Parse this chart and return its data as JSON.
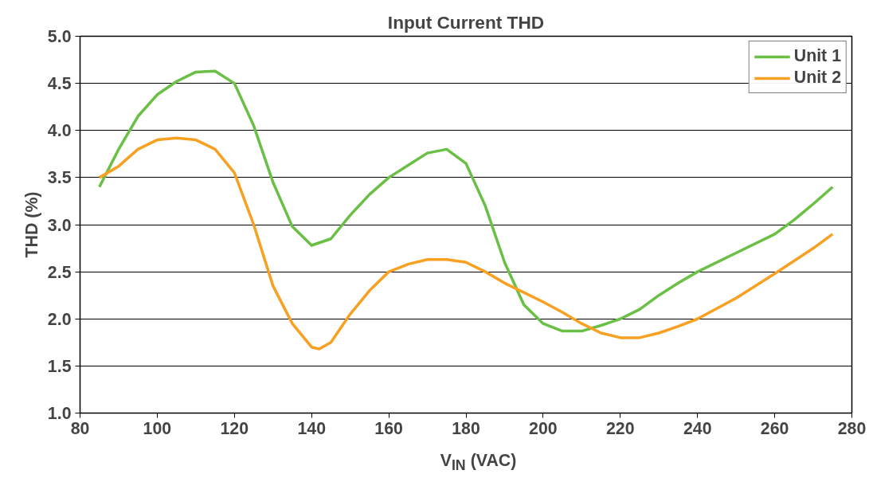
{
  "chart_data": {
    "type": "line",
    "title": "Input Current THD",
    "xlabel": "V$_{IN}$ (VAC)",
    "ylabel": "THD (%)",
    "xlim": [
      80,
      280
    ],
    "xticks": [
      80,
      100,
      120,
      140,
      160,
      180,
      200,
      220,
      240,
      260,
      280
    ],
    "ylim": [
      1.0,
      5.0
    ],
    "yticks": [
      {
        "value": 1,
        "label": "1.0"
      },
      {
        "value": 1.5,
        "label": "1.5"
      },
      {
        "value": 2,
        "label": "2.0"
      },
      {
        "value": 2.5,
        "label": "2.5"
      },
      {
        "value": 3,
        "label": "3.0"
      },
      {
        "value": 3.5,
        "label": "3.5"
      },
      {
        "value": 4,
        "label": "4.0"
      },
      {
        "value": 4.5,
        "label": "4.5"
      },
      {
        "value": 5,
        "label": "5.0"
      }
    ],
    "grid": "y",
    "legend": "top right",
    "marker": "none",
    "line_style": "solid",
    "series": [
      {
        "name": "Unit 1",
        "color": "#6abf45",
        "x": [
          85,
          90,
          95,
          100,
          105,
          110,
          115,
          120,
          125,
          130,
          135,
          140,
          145,
          150,
          155,
          160,
          165,
          170,
          175,
          180,
          185,
          190,
          195,
          200,
          205,
          210,
          215,
          220,
          225,
          230,
          235,
          240,
          250,
          260,
          265,
          270,
          275
        ],
        "values": [
          3.4,
          3.8,
          4.15,
          4.38,
          4.52,
          4.62,
          4.63,
          4.5,
          4.05,
          3.45,
          2.98,
          2.78,
          2.85,
          3.1,
          3.32,
          3.5,
          3.63,
          3.76,
          3.8,
          3.65,
          3.2,
          2.6,
          2.15,
          1.95,
          1.87,
          1.87,
          1.93,
          2.0,
          2.1,
          2.25,
          2.38,
          2.5,
          2.7,
          2.9,
          3.05,
          3.22,
          3.4
        ]
      },
      {
        "name": "Unit 2",
        "color": "#f7a021",
        "x": [
          85,
          90,
          95,
          100,
          105,
          110,
          115,
          120,
          125,
          130,
          135,
          140,
          142,
          145,
          150,
          155,
          160,
          165,
          170,
          175,
          180,
          185,
          190,
          195,
          200,
          205,
          210,
          215,
          220,
          225,
          230,
          235,
          240,
          250,
          260,
          270,
          275
        ],
        "values": [
          3.5,
          3.62,
          3.8,
          3.9,
          3.92,
          3.9,
          3.8,
          3.55,
          3.0,
          2.35,
          1.95,
          1.7,
          1.68,
          1.75,
          2.05,
          2.3,
          2.5,
          2.58,
          2.63,
          2.63,
          2.6,
          2.5,
          2.38,
          2.28,
          2.18,
          2.07,
          1.95,
          1.85,
          1.8,
          1.8,
          1.85,
          1.92,
          2.0,
          2.22,
          2.48,
          2.75,
          2.9
        ]
      }
    ]
  }
}
